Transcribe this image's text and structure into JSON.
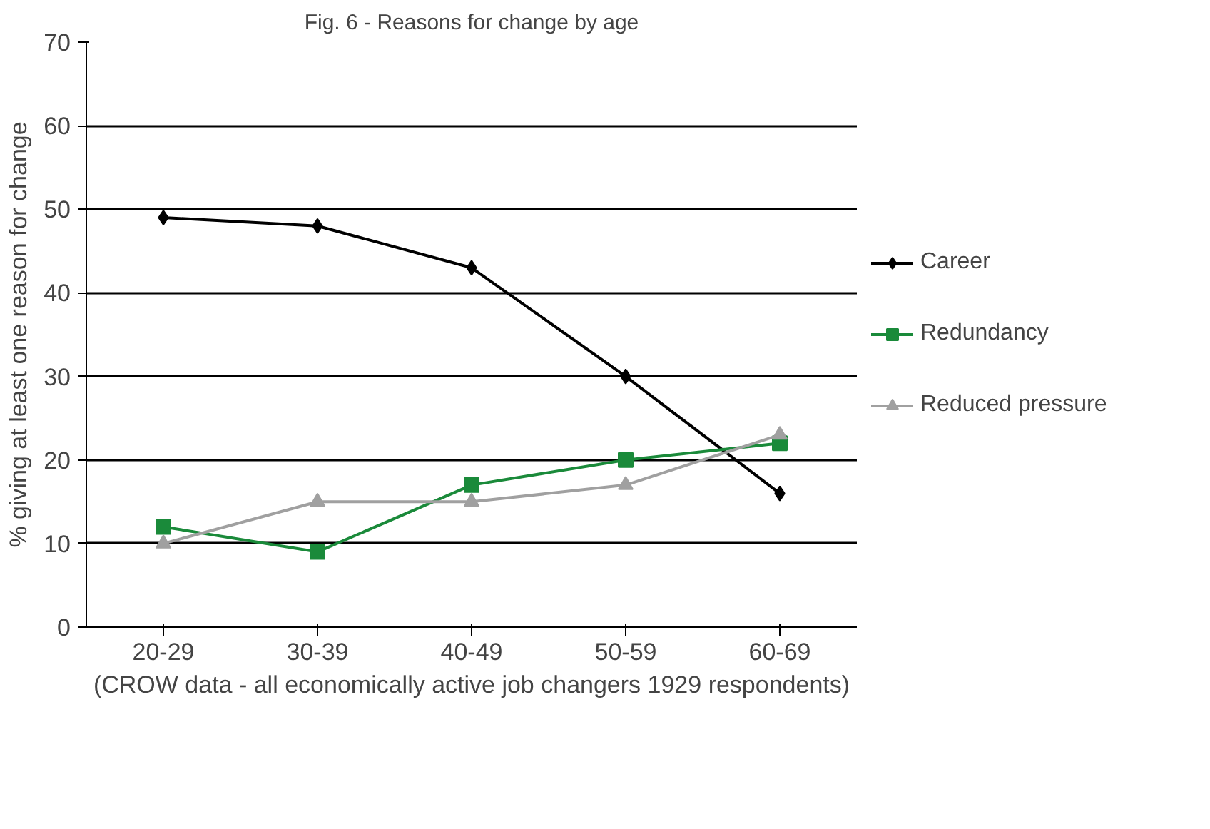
{
  "chart_data": {
    "type": "line",
    "title": "Fig. 6 - Reasons for change by age",
    "xlabel": "(CROW data - all economically active job changers 1929 respondents)",
    "ylabel": "% giving at least one reason for change",
    "categories": [
      "20-29",
      "30-39",
      "40-49",
      "50-59",
      "60-69"
    ],
    "series": [
      {
        "name": "Career",
        "color": "#000000",
        "marker": "diamond",
        "values": [
          49,
          48,
          43,
          30,
          16
        ]
      },
      {
        "name": "Redundancy",
        "color": "#1a8a3a",
        "marker": "square",
        "values": [
          12,
          9,
          17,
          20,
          22
        ]
      },
      {
        "name": "Reduced pressure",
        "color": "#a0a0a0",
        "marker": "triangle",
        "values": [
          10,
          15,
          15,
          17,
          23
        ]
      }
    ],
    "ylim": [
      0,
      70
    ],
    "yticks": [
      0,
      10,
      20,
      30,
      40,
      50,
      60,
      70
    ],
    "grid": "y",
    "legend": "right"
  }
}
